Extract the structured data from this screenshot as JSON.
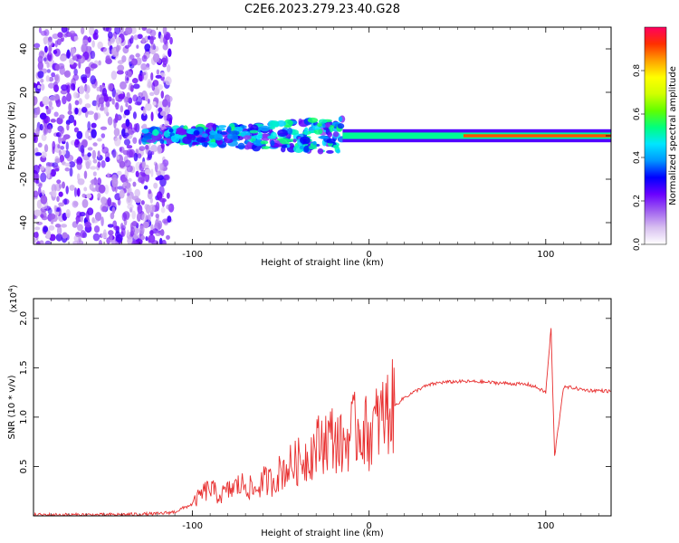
{
  "figure_title": "C2E6.2023.279.23.40.G28",
  "chart_data": [
    {
      "type": "heatmap",
      "title": "",
      "xlabel": "Height of straight line (km)",
      "ylabel": "Frequency (Hz)",
      "xlim": [
        -190,
        137
      ],
      "ylim": [
        -50,
        50
      ],
      "xticks": [
        -100,
        0,
        100
      ],
      "yticks": [
        -40,
        -20,
        0,
        20,
        40
      ],
      "grid": false,
      "colorbar": {
        "label": "Normalized spectral amplitude",
        "range": [
          0,
          1
        ],
        "ticks": [
          0.0,
          0.2,
          0.4,
          0.6,
          0.8
        ],
        "stops": [
          "#ffffff",
          "#d8c0f0",
          "#a060f0",
          "#6a00ff",
          "#0000ff",
          "#0096ff",
          "#00e6ff",
          "#00ff80",
          "#60ff00",
          "#d0ff00",
          "#ffff00",
          "#ffa000",
          "#ff3000",
          "#ff0060"
        ]
      },
      "regions": [
        {
          "x_range": [
            -190,
            -112
          ],
          "y_range": [
            -50,
            50
          ],
          "amplitude": 0.15
        },
        {
          "x_range": [
            -128,
            -15
          ],
          "y_range": [
            -8,
            8
          ],
          "amplitude": 0.35
        },
        {
          "x_range": [
            -15,
            137
          ],
          "y_range": [
            -3,
            3
          ],
          "amplitude": 0.7
        }
      ]
    },
    {
      "type": "line",
      "title": "",
      "xlabel": "Height of straight line (km)",
      "ylabel": "SNR (10 * v/v)",
      "y_multiplier": "x10^4",
      "y_multiplier_base": "(x10",
      "y_multiplier_exp": "4",
      "y_multiplier_close": ")",
      "xlim": [
        -190,
        137
      ],
      "ylim": [
        0,
        2.2
      ],
      "xticks": [
        -100,
        0,
        100
      ],
      "yticks": [
        0.5,
        1.0,
        1.5,
        2.0
      ],
      "grid": false,
      "series": [
        {
          "color": "#e83030",
          "x": [
            -190,
            -150,
            -120,
            -110,
            -100,
            -95,
            -90,
            -85,
            -80,
            -75,
            -70,
            -65,
            -60,
            -55,
            -50,
            -45,
            -40,
            -35,
            -30,
            -25,
            -20,
            -15,
            -10,
            -5,
            0,
            5,
            10,
            15,
            20,
            25,
            30,
            35,
            40,
            50,
            60,
            70,
            80,
            90,
            95,
            100,
            103,
            105,
            110,
            115,
            120,
            125,
            130,
            137
          ],
          "y": [
            0.01,
            0.01,
            0.02,
            0.04,
            0.12,
            0.22,
            0.28,
            0.2,
            0.25,
            0.3,
            0.32,
            0.25,
            0.35,
            0.35,
            0.45,
            0.5,
            0.55,
            0.6,
            0.7,
            0.78,
            0.8,
            0.7,
            0.85,
            0.9,
            0.82,
            0.95,
            1.05,
            1.12,
            1.2,
            1.25,
            1.3,
            1.33,
            1.35,
            1.36,
            1.36,
            1.35,
            1.34,
            1.33,
            1.3,
            1.25,
            1.9,
            0.6,
            1.3,
            1.3,
            1.28,
            1.27,
            1.27,
            1.26
          ]
        }
      ]
    }
  ]
}
